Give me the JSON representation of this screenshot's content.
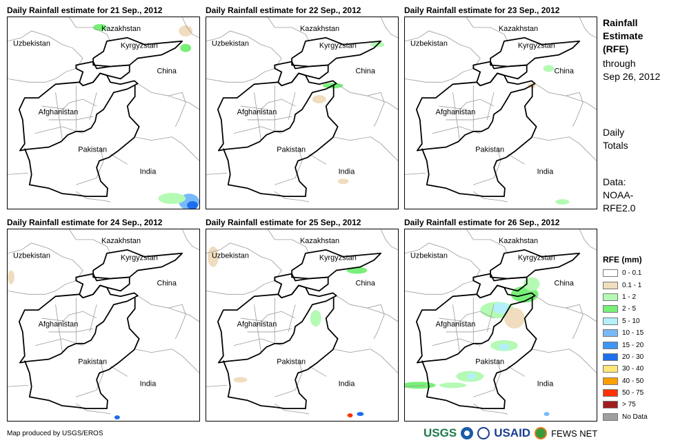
{
  "panels": [
    {
      "title": "Daily Rainfall estimate for 21 Sep., 2012"
    },
    {
      "title": "Daily Rainfall estimate for 22 Sep., 2012"
    },
    {
      "title": "Daily Rainfall estimate for 23 Sep., 2012"
    },
    {
      "title": "Daily Rainfall estimate for 24 Sep., 2012"
    },
    {
      "title": "Daily Rainfall estimate for 25 Sep., 2012"
    },
    {
      "title": "Daily Rainfall estimate for 26 Sep., 2012"
    }
  ],
  "countries": {
    "kazakhstan": "Kazakhstan",
    "uzbekistan": "Uzbekistan",
    "kyrgyzstan": "Kyrgyzstan",
    "china": "China",
    "afghanistan": "Afghanistan",
    "pakistan": "Pakistan",
    "india": "India"
  },
  "side": {
    "title1": "Rainfall",
    "title2": "Estimate",
    "title3": "(RFE)",
    "through": "through",
    "date": "Sep 26, 2012",
    "daily": "Daily",
    "totals": "Totals",
    "data1": "Data:",
    "data2": "NOAA-",
    "data3": "RFE2.0"
  },
  "legend": {
    "title": "RFE (mm)",
    "items": [
      {
        "label": "0 - 0.1",
        "color": "#ffffff"
      },
      {
        "label": "0.1 - 1",
        "color": "#f0dcbe"
      },
      {
        "label": "1 - 2",
        "color": "#b4fab4"
      },
      {
        "label": "2 - 5",
        "color": "#78f078"
      },
      {
        "label": "5 - 10",
        "color": "#b4f0fa"
      },
      {
        "label": "10 - 15",
        "color": "#78b9fa"
      },
      {
        "label": "15 - 20",
        "color": "#3c96f5"
      },
      {
        "label": "20 - 30",
        "color": "#1e6eeb"
      },
      {
        "label": "30 - 40",
        "color": "#ffe678"
      },
      {
        "label": "40 - 50",
        "color": "#ffa000"
      },
      {
        "label": "50 - 75",
        "color": "#ff3200"
      },
      {
        "label": "> 75",
        "color": "#a01e1e"
      },
      {
        "label": "No Data",
        "color": "#a0a0a0"
      }
    ]
  },
  "footer": "Map produced by USGS/EROS",
  "logos": {
    "usgs": "USGS",
    "usaid": "USAID",
    "fews": "FEWS NET"
  }
}
